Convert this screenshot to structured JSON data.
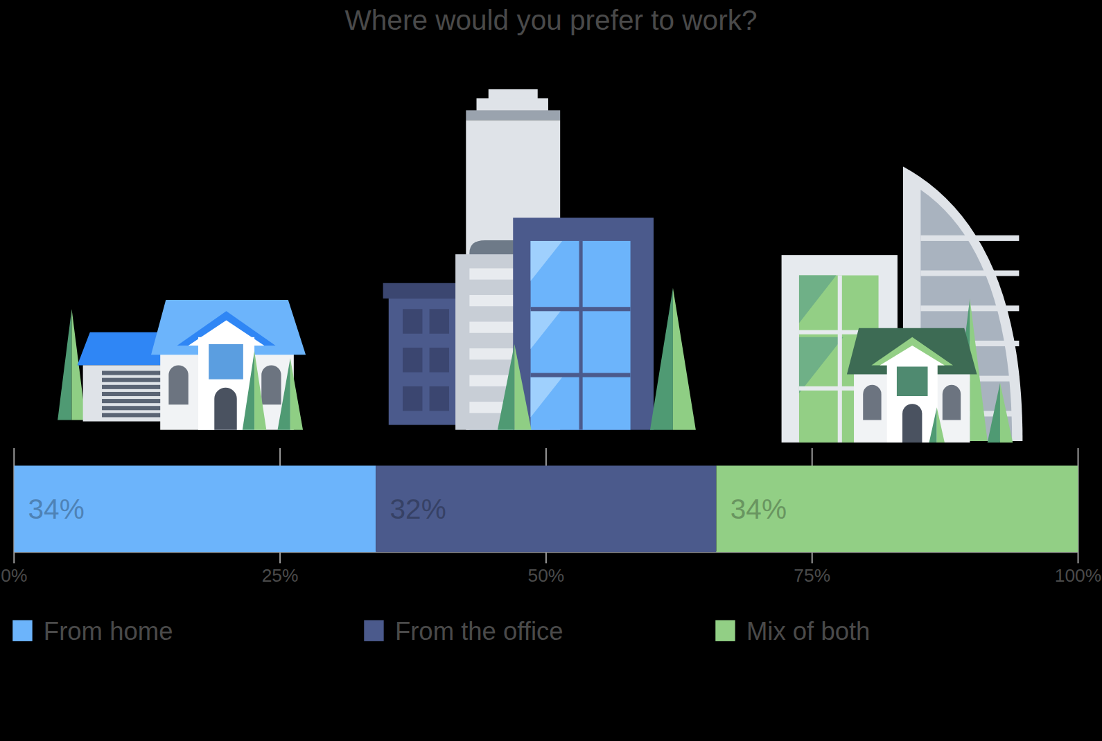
{
  "chart_data": {
    "type": "bar",
    "title": "Where would you prefer to work?",
    "orientation": "horizontal",
    "stacked": true,
    "data_labels": true,
    "legend": "bottom",
    "categories": [
      null
    ],
    "series": [
      {
        "name": "From home",
        "color": "#6cb4fb",
        "values": [
          34
        ],
        "value_labels": [
          "34%"
        ]
      },
      {
        "name": "From the office",
        "color": "#4b5a8c",
        "values": [
          32
        ],
        "value_labels": [
          "32%"
        ]
      },
      {
        "name": "Mix of both",
        "color": "#92cf85",
        "values": [
          34
        ],
        "value_labels": [
          "34%"
        ]
      }
    ],
    "xlim": [
      0,
      100
    ],
    "xticks": [
      {
        "value": 0,
        "label": "0%"
      },
      {
        "value": 25,
        "label": "25%"
      },
      {
        "value": 50,
        "label": "50%"
      },
      {
        "value": 75,
        "label": "75%"
      },
      {
        "value": 100,
        "label": "100%"
      }
    ]
  }
}
